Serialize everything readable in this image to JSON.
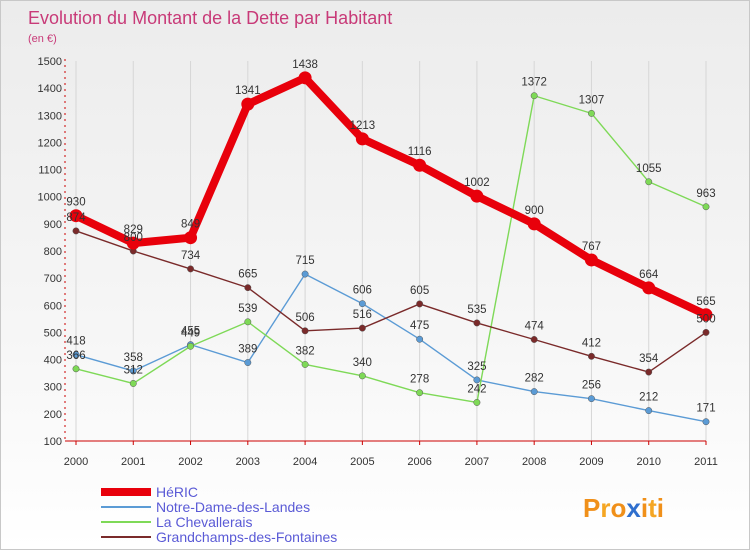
{
  "chart_data": {
    "type": "line",
    "title": "Evolution du Montant de la Dette par Habitant",
    "subtitle": "(en €)",
    "x": [
      "2000",
      "2001",
      "2002",
      "2003",
      "2004",
      "2005",
      "2006",
      "2007",
      "2008",
      "2009",
      "2010",
      "2011"
    ],
    "ylim": [
      100,
      1500
    ],
    "yticks": [
      100,
      200,
      300,
      400,
      500,
      600,
      700,
      800,
      900,
      1000,
      1100,
      1200,
      1300,
      1400,
      1500
    ],
    "grid": "vertical",
    "legend_position": "bottom-left",
    "series": [
      {
        "name": "HéRIC",
        "color": "#e8000b",
        "values": [
          930,
          829,
          849,
          1341,
          1438,
          1213,
          1116,
          1002,
          900,
          767,
          664,
          565
        ]
      },
      {
        "name": "Notre-Dame-des-Landes",
        "color": "#5b9bd5",
        "values": [
          418,
          358,
          455,
          389,
          715,
          606,
          475,
          325,
          282,
          256,
          212,
          171
        ]
      },
      {
        "name": "La Chevallerais",
        "color": "#7ed957",
        "values": [
          366,
          312,
          449,
          539,
          382,
          340,
          278,
          242,
          1372,
          1307,
          1055,
          963
        ]
      },
      {
        "name": "Grandchamps-des-Fontaines",
        "color": "#7a2a2a",
        "values": [
          874,
          800,
          734,
          665,
          506,
          516,
          605,
          535,
          474,
          412,
          354,
          500
        ]
      }
    ]
  },
  "logo": {
    "text": "Proxiti"
  }
}
